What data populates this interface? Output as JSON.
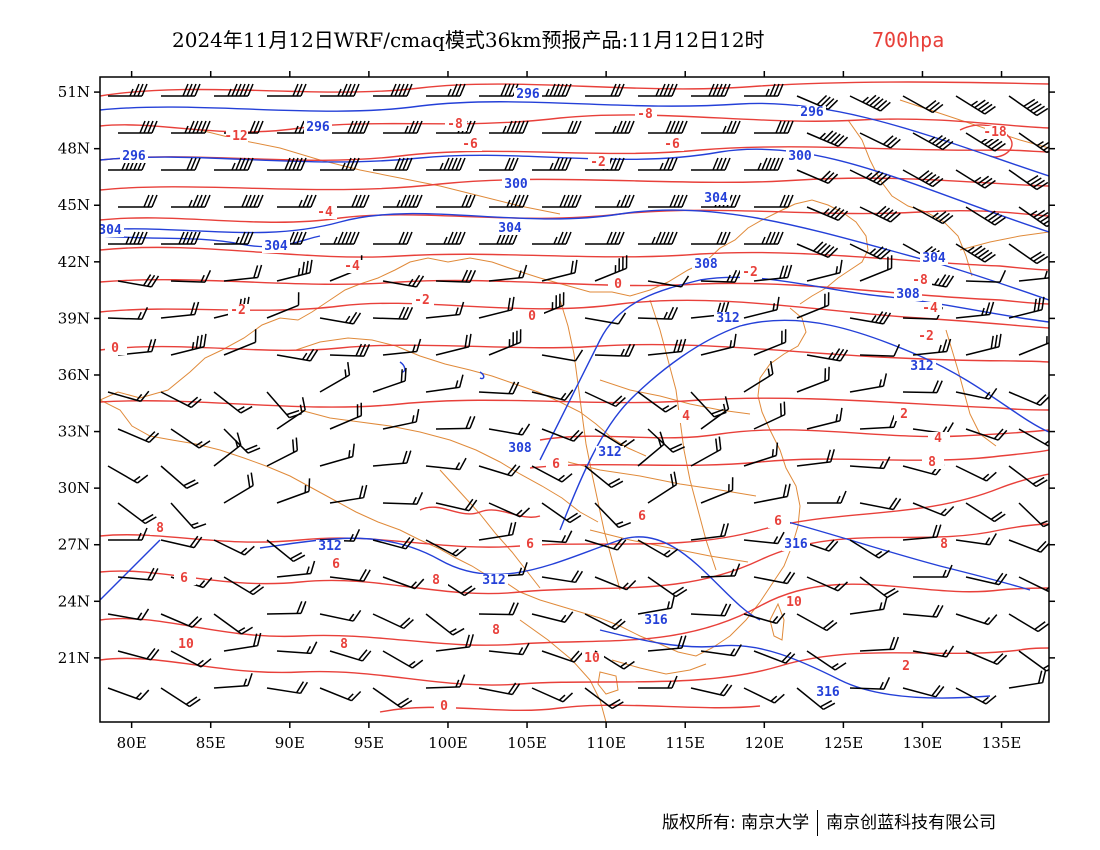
{
  "title": {
    "main": "2024年11月12日WRF/cmaq模式36km预报产品:11月12日12时",
    "level": "700hpa",
    "level_color": "#e8403a"
  },
  "map": {
    "lon_range": [
      78,
      138
    ],
    "lat_range": [
      17.6,
      51.8
    ],
    "x_ticks": [
      "80E",
      "85E",
      "90E",
      "95E",
      "100E",
      "105E",
      "110E",
      "115E",
      "120E",
      "125E",
      "130E",
      "135E"
    ],
    "y_ticks": [
      "51N",
      "48N",
      "45N",
      "42N",
      "39N",
      "36N",
      "33N",
      "30N",
      "27N",
      "24N",
      "21N"
    ],
    "colors": {
      "temperature": "#e8403a",
      "geopotential": "#2440d8",
      "boundary": "#e08a3a",
      "wind_barb": "#000000"
    },
    "temperature_labels": [
      "-12",
      "-8",
      "-8",
      "-6",
      "-6",
      "-4",
      "-4",
      "-2",
      "-2",
      "-2",
      "-2",
      "0",
      "0",
      "0",
      "-18",
      "-8",
      "-4",
      "-2",
      "2",
      "4",
      "4",
      "6",
      "6",
      "6",
      "6",
      "6",
      "6",
      "8",
      "8",
      "8",
      "8",
      "8",
      "8",
      "10",
      "10",
      "10",
      "2",
      "0"
    ],
    "geopotential_labels": [
      "296",
      "296",
      "296",
      "296",
      "300",
      "300",
      "304",
      "304",
      "304",
      "304",
      "304",
      "308",
      "308",
      "308",
      "312",
      "312",
      "312",
      "312",
      "312",
      "316",
      "316",
      "316"
    ]
  },
  "footer": {
    "copyright": "版权所有: 南京大学",
    "company": "南京创蓝科技有限公司"
  }
}
